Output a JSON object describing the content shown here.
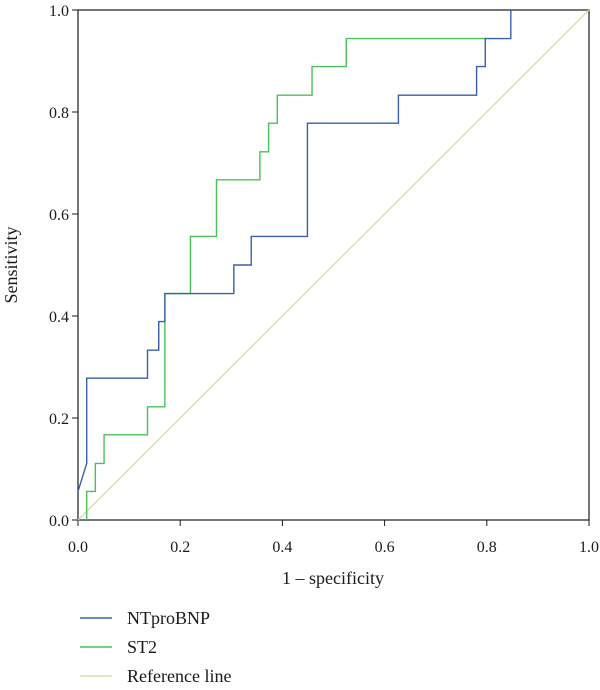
{
  "chart_data": {
    "type": "line",
    "title": "",
    "xlabel": "1 – specificity",
    "ylabel": "Sensitivity",
    "xlim": [
      0,
      1
    ],
    "ylim": [
      0,
      1
    ],
    "x_ticks": [
      "0.0",
      "0.2",
      "0.4",
      "0.6",
      "0.8",
      "1.0"
    ],
    "y_ticks": [
      "0.0",
      "0.2",
      "0.4",
      "0.6",
      "0.8",
      "1.0"
    ],
    "grid": false,
    "legend_position": "bottom-left",
    "series": [
      {
        "name": "NTproBNP",
        "color": "#3a5fae",
        "points": [
          [
            0,
            0.056
          ],
          [
            0.017,
            0.111
          ],
          [
            0.017,
            0.278
          ],
          [
            0.136,
            0.278
          ],
          [
            0.136,
            0.333
          ],
          [
            0.158,
            0.333
          ],
          [
            0.158,
            0.389
          ],
          [
            0.17,
            0.389
          ],
          [
            0.17,
            0.444
          ],
          [
            0.305,
            0.444
          ],
          [
            0.305,
            0.5
          ],
          [
            0.339,
            0.5
          ],
          [
            0.339,
            0.556
          ],
          [
            0.449,
            0.556
          ],
          [
            0.449,
            0.778
          ],
          [
            0.627,
            0.778
          ],
          [
            0.627,
            0.833
          ],
          [
            0.78,
            0.833
          ],
          [
            0.78,
            0.889
          ],
          [
            0.797,
            0.889
          ],
          [
            0.797,
            0.944
          ],
          [
            0.847,
            0.944
          ],
          [
            0.847,
            1.0
          ]
        ]
      },
      {
        "name": "ST2",
        "color": "#4cc15a",
        "points": [
          [
            0.017,
            0
          ],
          [
            0.017,
            0.056
          ],
          [
            0.034,
            0.056
          ],
          [
            0.034,
            0.111
          ],
          [
            0.051,
            0.111
          ],
          [
            0.051,
            0.167
          ],
          [
            0.136,
            0.167
          ],
          [
            0.136,
            0.222
          ],
          [
            0.17,
            0.222
          ],
          [
            0.17,
            0.444
          ],
          [
            0.22,
            0.444
          ],
          [
            0.22,
            0.556
          ],
          [
            0.271,
            0.556
          ],
          [
            0.271,
            0.667
          ],
          [
            0.356,
            0.667
          ],
          [
            0.356,
            0.722
          ],
          [
            0.373,
            0.722
          ],
          [
            0.373,
            0.778
          ],
          [
            0.39,
            0.778
          ],
          [
            0.39,
            0.833
          ],
          [
            0.458,
            0.833
          ],
          [
            0.458,
            0.889
          ],
          [
            0.525,
            0.889
          ],
          [
            0.525,
            0.944
          ],
          [
            0.797,
            0.944
          ],
          [
            0.797,
            0.944
          ]
        ]
      },
      {
        "name": "Reference line",
        "color": "#d9dfb1",
        "points": [
          [
            0,
            0
          ],
          [
            1,
            1
          ]
        ]
      }
    ]
  }
}
